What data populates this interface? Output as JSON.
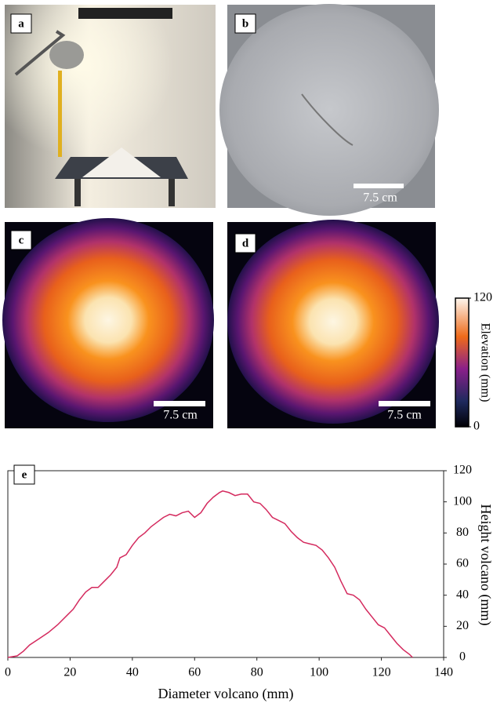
{
  "panels": [
    {
      "label": "a"
    },
    {
      "label": "b",
      "scale_bar": "7.5 cm"
    },
    {
      "label": "c",
      "scale_bar": "7.5 cm"
    },
    {
      "label": "d",
      "scale_bar": "7.5 cm"
    }
  ],
  "colorbar": {
    "label": "Elevation (mm)",
    "lim": [
      0,
      120
    ],
    "ticks": [
      0,
      120
    ]
  },
  "chart_data": {
    "type": "line",
    "label": "e",
    "x_label": "Diameter volcano (mm)",
    "y_label": "Height volcano (mm)",
    "x": [
      0,
      3,
      5,
      7,
      10,
      13,
      16,
      19,
      21,
      23,
      25,
      27,
      29,
      31,
      33,
      35,
      36,
      38,
      40,
      42,
      44,
      46,
      48,
      50,
      52,
      54,
      56,
      58,
      60,
      62,
      64,
      66,
      68,
      69,
      71,
      73,
      75,
      77,
      79,
      81,
      83,
      85,
      87,
      89,
      91,
      93,
      95,
      97,
      99,
      101,
      103,
      105,
      107,
      109,
      111,
      113,
      115,
      117,
      119,
      121,
      123,
      125,
      127,
      129,
      130
    ],
    "values": [
      0,
      1,
      4,
      8,
      12,
      16,
      21,
      27,
      31,
      37,
      42,
      45,
      45,
      49,
      53,
      58,
      64,
      66,
      72,
      77,
      80,
      84,
      87,
      90,
      92,
      91,
      93,
      94,
      90,
      93,
      99,
      103,
      106,
      107,
      106,
      104,
      105,
      105,
      100,
      99,
      95,
      90,
      88,
      86,
      81,
      77,
      74,
      73,
      72,
      69,
      64,
      58,
      49,
      41,
      40,
      37,
      31,
      26,
      21,
      19,
      14,
      9,
      5,
      2,
      0
    ],
    "color": "#d42a5e",
    "xlim": [
      0,
      140
    ],
    "xticks": [
      0,
      20,
      40,
      60,
      80,
      100,
      120,
      140
    ],
    "ylim": [
      0,
      120
    ],
    "yticks": [
      0,
      20,
      40,
      60,
      80,
      100,
      120
    ],
    "y_axis_side": "right"
  }
}
